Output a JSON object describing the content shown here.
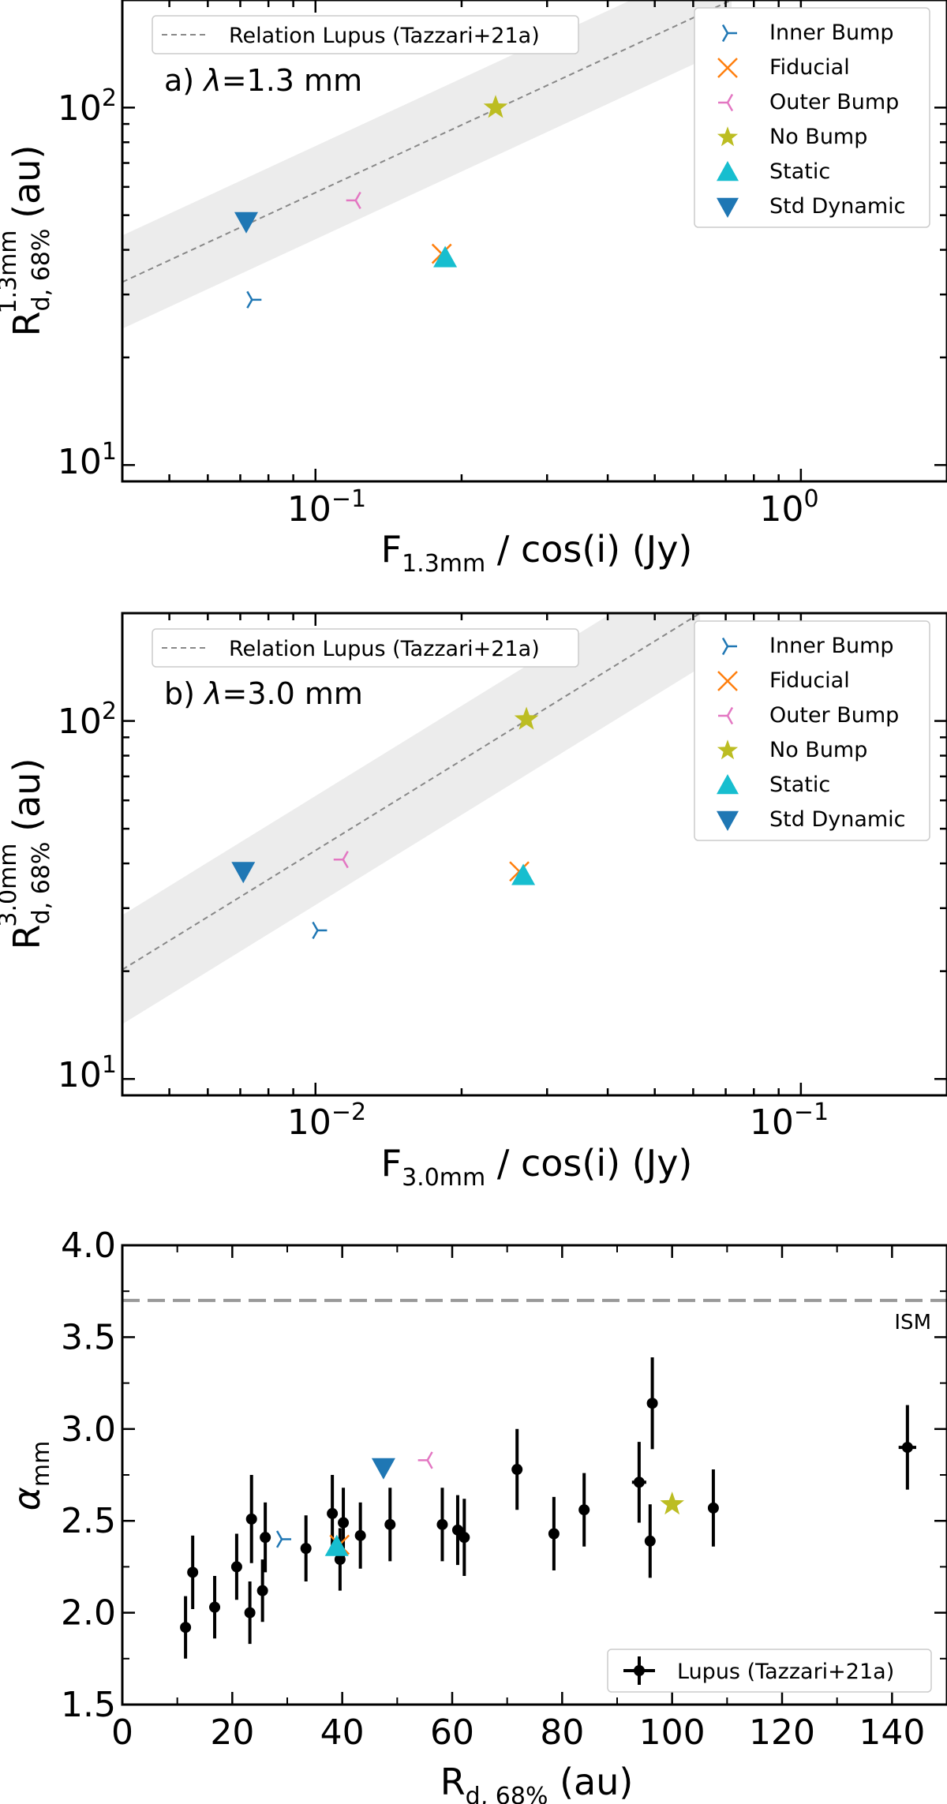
{
  "colors": {
    "inner_bump": "#1f77b4",
    "fiducial": "#ff7f0e",
    "outer_bump": "#e377c2",
    "no_bump": "#bcbd22",
    "static": "#17becf",
    "std_dynamic": "#1f77b4",
    "relation": "#888888",
    "band": "#ececec",
    "ism": "#999999",
    "lupus": "#000000"
  },
  "legend": {
    "relation": "Relation Lupus (Tazzari+21a)",
    "inner_bump": "Inner Bump",
    "fiducial": "Fiducial",
    "outer_bump": "Outer Bump",
    "no_bump": "No Bump",
    "static": "Static",
    "std_dynamic": "Std Dynamic",
    "lupus": "Lupus (Tazzari+21a)"
  },
  "chart_data": [
    {
      "id": "a",
      "type": "scatter",
      "panel_label_prefix": "a) ",
      "lambda_symbol": "λ",
      "panel_label_value": "=1.3 mm",
      "xlabel_main": "F",
      "xlabel_sub": "1.3mm",
      "xlabel_rest": " / cos(i) (Jy)",
      "ylabel_main": "R",
      "ylabel_sub": "d, 68%",
      "ylabel_sup": "1.3mm",
      "ylabel_rest": " (au)",
      "xscale": "log",
      "yscale": "log",
      "xlim": [
        0.04,
        2.0
      ],
      "ylim": [
        9.0,
        200.0
      ],
      "xtick_labels": [
        {
          "value": 0.1,
          "base": "10",
          "exp": "−1"
        },
        {
          "value": 1.0,
          "base": "10",
          "exp": "0"
        }
      ],
      "ytick_labels": [
        {
          "value": 10,
          "base": "10",
          "exp": "1"
        },
        {
          "value": 100,
          "base": "10",
          "exp": "2"
        }
      ],
      "relation_line": {
        "x": [
          0.04,
          0.72
        ],
        "y": [
          32.5,
          200.0
        ],
        "band_factor": 1.35
      },
      "points": [
        {
          "series": "inner_bump",
          "x": 0.074,
          "y": 29
        },
        {
          "series": "fiducial",
          "x": 0.182,
          "y": 39
        },
        {
          "series": "outer_bump",
          "x": 0.121,
          "y": 55
        },
        {
          "series": "no_bump",
          "x": 0.235,
          "y": 100
        },
        {
          "series": "static",
          "x": 0.185,
          "y": 38
        },
        {
          "series": "std_dynamic",
          "x": 0.072,
          "y": 48
        }
      ]
    },
    {
      "id": "b",
      "type": "scatter",
      "panel_label_prefix": "b) ",
      "lambda_symbol": "λ",
      "panel_label_value": "=3.0 mm",
      "xlabel_main": "F",
      "xlabel_sub": "3.0mm",
      "xlabel_rest": " / cos(i) (Jy)",
      "ylabel_main": "R",
      "ylabel_sub": "d, 68%",
      "ylabel_sup": "3.0mm",
      "ylabel_rest": " (au)",
      "xscale": "log",
      "yscale": "log",
      "xlim": [
        0.004,
        0.2
      ],
      "ylim": [
        9.0,
        200.0
      ],
      "xtick_labels": [
        {
          "value": 0.01,
          "base": "10",
          "exp": "−2"
        },
        {
          "value": 0.1,
          "base": "10",
          "exp": "−1"
        }
      ],
      "ytick_labels": [
        {
          "value": 10,
          "base": "10",
          "exp": "1"
        },
        {
          "value": 100,
          "base": "10",
          "exp": "2"
        }
      ],
      "relation_line": {
        "x": [
          0.004,
          0.062
        ],
        "y": [
          20.2,
          200.0
        ],
        "band_factor": 1.42
      },
      "points": [
        {
          "series": "inner_bump",
          "x": 0.0101,
          "y": 26
        },
        {
          "series": "fiducial",
          "x": 0.0263,
          "y": 38
        },
        {
          "series": "outer_bump",
          "x": 0.0114,
          "y": 41
        },
        {
          "series": "no_bump",
          "x": 0.0272,
          "y": 101
        },
        {
          "series": "static",
          "x": 0.0268,
          "y": 37
        },
        {
          "series": "std_dynamic",
          "x": 0.0071,
          "y": 38
        }
      ]
    },
    {
      "id": "c",
      "type": "scatter",
      "xlabel_main": "R",
      "xlabel_sub": "d, 68%",
      "xlabel_rest": " (au)",
      "ylabel_main": "α",
      "ylabel_sub": "mm",
      "xscale": "linear",
      "yscale": "linear",
      "xlim": [
        0,
        150
      ],
      "ylim": [
        1.5,
        4.0
      ],
      "xticks": [
        0,
        20,
        40,
        60,
        80,
        100,
        120,
        140
      ],
      "xtick_labels": [
        "0",
        "20",
        "40",
        "60",
        "80",
        "100",
        "120",
        "140"
      ],
      "yticks": [
        1.5,
        2.0,
        2.5,
        3.0,
        3.5,
        4.0
      ],
      "ytick_labels": [
        "1.5",
        "2.0",
        "2.5",
        "3.0",
        "3.5",
        "4.0"
      ],
      "ism_line": {
        "y": 3.7,
        "label": "ISM"
      },
      "lupus": {
        "x": [
          11.5,
          12.8,
          16.8,
          20.8,
          23.2,
          23.5,
          25.5,
          26.0,
          33.4,
          38.2,
          39.6,
          40.2,
          43.3,
          48.7,
          58.2,
          61.0,
          62.2,
          71.8,
          78.5,
          84.0,
          94.0,
          96.0,
          96.4,
          107.5,
          142.8
        ],
        "y": [
          1.92,
          2.22,
          2.03,
          2.25,
          2.0,
          2.51,
          2.12,
          2.41,
          2.35,
          2.54,
          2.29,
          2.49,
          2.42,
          2.48,
          2.48,
          2.45,
          2.41,
          2.78,
          2.43,
          2.56,
          2.71,
          2.39,
          3.14,
          2.57,
          2.9
        ],
        "err": [
          0.17,
          0.2,
          0.17,
          0.18,
          0.17,
          0.24,
          0.17,
          0.19,
          0.18,
          0.21,
          0.17,
          0.19,
          0.18,
          0.2,
          0.2,
          0.19,
          0.21,
          0.22,
          0.2,
          0.2,
          0.22,
          0.2,
          0.25,
          0.21,
          0.23
        ],
        "xerr": [
          0,
          0,
          0,
          0,
          0,
          0,
          0,
          0,
          0,
          0,
          0,
          0,
          0,
          0,
          0,
          0,
          0,
          0,
          0,
          0,
          1.3,
          0,
          0,
          0,
          1.6
        ]
      },
      "points": [
        {
          "series": "inner_bump",
          "x": 29,
          "y": 2.4
        },
        {
          "series": "fiducial",
          "x": 39.5,
          "y": 2.37
        },
        {
          "series": "outer_bump",
          "x": 55.5,
          "y": 2.83
        },
        {
          "series": "no_bump",
          "x": 100,
          "y": 2.59
        },
        {
          "series": "static",
          "x": 39,
          "y": 2.36
        },
        {
          "series": "std_dynamic",
          "x": 47.5,
          "y": 2.79
        }
      ]
    }
  ]
}
